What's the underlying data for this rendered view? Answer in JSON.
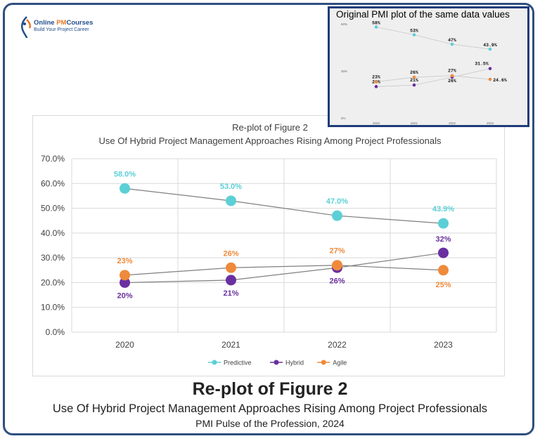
{
  "brand": {
    "name_prefix": "Online ",
    "name_highlight": "PM",
    "name_suffix": "Courses",
    "tagline": "Build Your Project Career"
  },
  "inset": {
    "title": "Original PMI plot of the same data values"
  },
  "captions": {
    "title": "Re-plot of Figure 2",
    "subtitle": "Use Of Hybrid Project Management Approaches Rising Among Project Professionals",
    "source": "PMI Pulse of the Profession, 2024"
  },
  "colors": {
    "predictive": "#5ccfd6",
    "hybrid": "#6a2fa0",
    "agile": "#ef8a3a",
    "frame": "#2f4f7f"
  },
  "chart_data": [
    {
      "type": "line",
      "title": "Re-plot of Figure 2",
      "subtitle": "Use Of Hybrid Project Management Approaches Rising Among Project Professionals",
      "categories": [
        "2020",
        "2021",
        "2022",
        "2023"
      ],
      "ylim": [
        0,
        70
      ],
      "yticks": [
        "0.0%",
        "10.0%",
        "20.0%",
        "30.0%",
        "40.0%",
        "50.0%",
        "60.0%",
        "70.0%"
      ],
      "grid": true,
      "legend": "bottom",
      "series": [
        {
          "name": "Predictive",
          "values": [
            58.0,
            53.0,
            47.0,
            43.9
          ],
          "labels": [
            "58.0%",
            "53.0%",
            "47.0%",
            "43.9%"
          ]
        },
        {
          "name": "Hybrid",
          "values": [
            20,
            21,
            26,
            32
          ],
          "labels": [
            "20%",
            "21%",
            "26%",
            "32%"
          ]
        },
        {
          "name": "Agile",
          "values": [
            23,
            26,
            27,
            25
          ],
          "labels": [
            "23%",
            "26%",
            "27%",
            "25%"
          ]
        }
      ]
    },
    {
      "type": "line",
      "title": "Original PMI plot of the same data values",
      "categories": [
        "2020",
        "2021",
        "2022",
        "2023"
      ],
      "ylim": [
        0,
        60
      ],
      "yticks": [
        "0%",
        "30%",
        "60%"
      ],
      "grid": false,
      "series": [
        {
          "name": "Predictive",
          "values": [
            58,
            53,
            47,
            43.9
          ],
          "labels": [
            "58%",
            "53%",
            "47%",
            "43.9%"
          ]
        },
        {
          "name": "Hybrid",
          "values": [
            20,
            21,
            26,
            31.5
          ],
          "labels": [
            "20%",
            "21%",
            "26%",
            "31.5%"
          ]
        },
        {
          "name": "Agile",
          "values": [
            23,
            26,
            27,
            24.6
          ],
          "labels": [
            "23%",
            "26%",
            "27%",
            "24.6%"
          ]
        }
      ]
    }
  ]
}
